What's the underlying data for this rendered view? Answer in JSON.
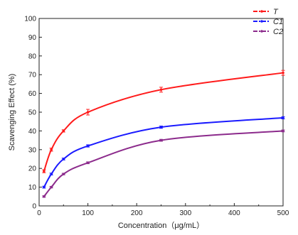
{
  "chart_data": {
    "type": "line",
    "title": "",
    "xlabel": "Concentration（μg/mL）",
    "ylabel": "Scavenging Effect (%)",
    "xlim": [
      0,
      500
    ],
    "ylim": [
      0,
      100
    ],
    "xticks": [
      0,
      100,
      200,
      300,
      400,
      500
    ],
    "yticks": [
      0,
      10,
      20,
      30,
      40,
      50,
      60,
      70,
      80,
      90,
      100
    ],
    "grid": false,
    "legend_position": "top-right",
    "x": [
      10,
      25,
      50,
      100,
      250,
      500
    ],
    "series": [
      {
        "name": "T",
        "color": "#ff1a1a",
        "values": [
          18.5,
          30,
          40,
          50,
          62,
          71
        ],
        "errors": [
          0.8,
          0.8,
          0.6,
          1.5,
          1.3,
          1.3
        ]
      },
      {
        "name": "C1",
        "color": "#1a1aff",
        "values": [
          10,
          17,
          25,
          32,
          42,
          47
        ],
        "errors": [
          0.5,
          0.5,
          0.5,
          0.6,
          0.6,
          0.6
        ]
      },
      {
        "name": "C2",
        "color": "#8c2b8c",
        "values": [
          5,
          10,
          17,
          23,
          35,
          40
        ],
        "errors": [
          0.4,
          0.4,
          0.4,
          0.5,
          0.5,
          0.5
        ]
      }
    ]
  }
}
